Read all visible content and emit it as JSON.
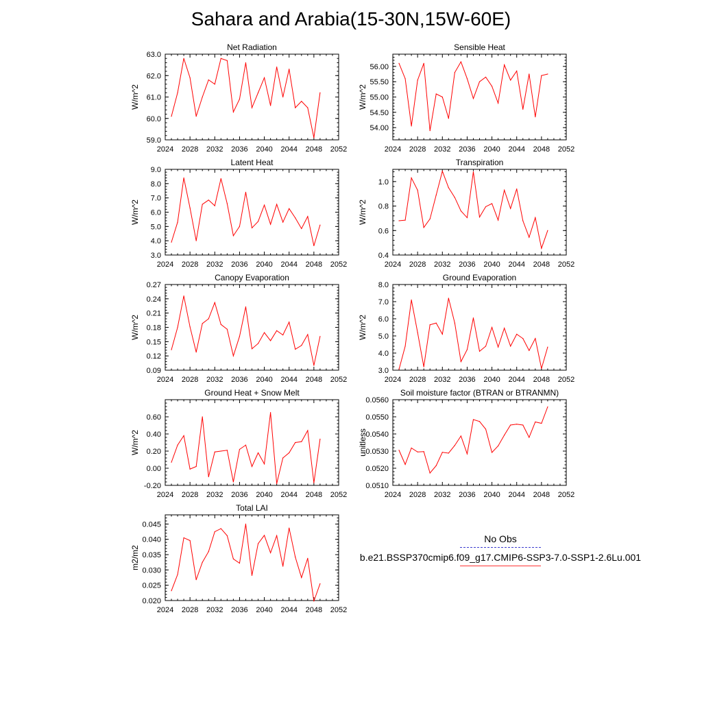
{
  "page_title": "Sahara and Arabia(15-30N,15W-60E)",
  "legend": {
    "obs_label": "No Obs",
    "obs_color": "#3a3acd",
    "model_label": "b.e21.BSSP370cmip6.f09_g17.CMIP6-SSP3-7.0-SSP1-2.6Lu.001",
    "model_color": "#ff0000"
  },
  "chart_data": [
    {
      "type": "line",
      "title": "Net Radiation",
      "ylabel": "W/m^2",
      "xlim": [
        2024,
        2052
      ],
      "xticks": [
        2024,
        2028,
        2032,
        2036,
        2040,
        2044,
        2048,
        2052
      ],
      "ylim": [
        59.0,
        63.0
      ],
      "yticks": [
        "59.0",
        "60.0",
        "61.0",
        "62.0",
        "63.0"
      ],
      "x": [
        2025,
        2026,
        2027,
        2028,
        2029,
        2030,
        2031,
        2032,
        2033,
        2034,
        2035,
        2036,
        2037,
        2038,
        2039,
        2040,
        2041,
        2042,
        2043,
        2044,
        2045,
        2046,
        2047,
        2048,
        2049
      ],
      "series": [
        {
          "values": [
            60.1,
            61.2,
            62.8,
            61.9,
            60.1,
            61.0,
            61.8,
            61.6,
            62.8,
            62.7,
            60.3,
            60.9,
            62.6,
            60.5,
            61.2,
            61.9,
            60.6,
            62.4,
            61.0,
            62.3,
            60.5,
            60.8,
            60.5,
            59.1,
            61.2
          ]
        }
      ]
    },
    {
      "type": "line",
      "title": "Sensible Heat",
      "ylabel": "W/m^2",
      "xlim": [
        2024,
        2052
      ],
      "xticks": [
        2024,
        2028,
        2032,
        2036,
        2040,
        2044,
        2048,
        2052
      ],
      "ylim": [
        53.6,
        56.4
      ],
      "yticks": [
        "54.00",
        "54.50",
        "55.00",
        "55.50",
        "56.00"
      ],
      "x": [
        2025,
        2026,
        2027,
        2028,
        2029,
        2030,
        2031,
        2032,
        2033,
        2034,
        2035,
        2036,
        2037,
        2038,
        2039,
        2040,
        2041,
        2042,
        2043,
        2044,
        2045,
        2046,
        2047,
        2048,
        2049
      ],
      "series": [
        {
          "values": [
            56.1,
            55.6,
            54.05,
            55.55,
            56.1,
            53.9,
            55.1,
            55.0,
            54.3,
            55.8,
            56.15,
            55.6,
            54.95,
            55.5,
            55.65,
            55.35,
            54.8,
            56.05,
            55.55,
            55.85,
            54.6,
            55.75,
            54.35,
            55.7,
            55.75
          ]
        }
      ]
    },
    {
      "type": "line",
      "title": "Latent Heat",
      "ylabel": "W/m^2",
      "xlim": [
        2024,
        2052
      ],
      "xticks": [
        2024,
        2028,
        2032,
        2036,
        2040,
        2044,
        2048,
        2052
      ],
      "ylim": [
        3.0,
        9.0
      ],
      "yticks": [
        "3.0",
        "4.0",
        "5.0",
        "6.0",
        "7.0",
        "8.0",
        "9.0"
      ],
      "x": [
        2025,
        2026,
        2027,
        2028,
        2029,
        2030,
        2031,
        2032,
        2033,
        2034,
        2035,
        2036,
        2037,
        2038,
        2039,
        2040,
        2041,
        2042,
        2043,
        2044,
        2045,
        2046,
        2047,
        2048,
        2049
      ],
      "series": [
        {
          "values": [
            3.9,
            5.3,
            8.4,
            6.3,
            4.0,
            6.55,
            6.85,
            6.45,
            8.35,
            6.6,
            4.35,
            5.0,
            7.4,
            4.9,
            5.35,
            6.5,
            5.15,
            6.55,
            5.3,
            6.25,
            5.6,
            4.85,
            5.7,
            3.65,
            5.1
          ]
        }
      ]
    },
    {
      "type": "line",
      "title": "Transpiration",
      "ylabel": "W/m^2",
      "xlim": [
        2024,
        2052
      ],
      "xticks": [
        2024,
        2028,
        2032,
        2036,
        2040,
        2044,
        2048,
        2052
      ],
      "ylim": [
        0.4,
        1.1
      ],
      "yticks": [
        "0.4",
        "0.6",
        "0.8",
        "1.0"
      ],
      "x": [
        2025,
        2026,
        2027,
        2028,
        2029,
        2030,
        2031,
        2032,
        2033,
        2034,
        2035,
        2036,
        2037,
        2038,
        2039,
        2040,
        2041,
        2042,
        2043,
        2044,
        2045,
        2046,
        2047,
        2048,
        2049
      ],
      "series": [
        {
          "values": [
            0.68,
            0.685,
            1.03,
            0.93,
            0.625,
            0.695,
            0.89,
            1.085,
            0.95,
            0.87,
            0.76,
            0.705,
            1.08,
            0.71,
            0.795,
            0.82,
            0.685,
            0.93,
            0.78,
            0.94,
            0.68,
            0.545,
            0.705,
            0.455,
            0.6
          ]
        }
      ]
    },
    {
      "type": "line",
      "title": "Canopy Evaporation",
      "ylabel": "W/m^2",
      "xlim": [
        2024,
        2052
      ],
      "xticks": [
        2024,
        2028,
        2032,
        2036,
        2040,
        2044,
        2048,
        2052
      ],
      "ylim": [
        0.09,
        0.27
      ],
      "yticks": [
        "0.09",
        "0.12",
        "0.15",
        "0.18",
        "0.21",
        "0.24",
        "0.27"
      ],
      "x": [
        2025,
        2026,
        2027,
        2028,
        2029,
        2030,
        2031,
        2032,
        2033,
        2034,
        2035,
        2036,
        2037,
        2038,
        2039,
        2040,
        2041,
        2042,
        2043,
        2044,
        2045,
        2046,
        2047,
        2048,
        2049
      ],
      "series": [
        {
          "values": [
            0.133,
            0.18,
            0.246,
            0.181,
            0.128,
            0.188,
            0.198,
            0.232,
            0.186,
            0.176,
            0.12,
            0.161,
            0.223,
            0.135,
            0.146,
            0.169,
            0.152,
            0.173,
            0.164,
            0.191,
            0.134,
            0.142,
            0.165,
            0.1,
            0.161
          ]
        }
      ]
    },
    {
      "type": "line",
      "title": "Ground Evaporation",
      "ylabel": "W/m^2",
      "xlim": [
        2024,
        2052
      ],
      "xticks": [
        2024,
        2028,
        2032,
        2036,
        2040,
        2044,
        2048,
        2052
      ],
      "ylim": [
        3.0,
        8.0
      ],
      "yticks": [
        "3.0",
        "4.0",
        "5.0",
        "6.0",
        "7.0",
        "8.0"
      ],
      "x": [
        2025,
        2026,
        2027,
        2028,
        2029,
        2030,
        2031,
        2032,
        2033,
        2034,
        2035,
        2036,
        2037,
        2038,
        2039,
        2040,
        2041,
        2042,
        2043,
        2044,
        2045,
        2046,
        2047,
        2048,
        2049
      ],
      "series": [
        {
          "values": [
            3.05,
            4.4,
            7.1,
            5.2,
            3.2,
            5.65,
            5.75,
            5.1,
            7.2,
            5.75,
            3.5,
            4.2,
            6.05,
            4.1,
            4.4,
            5.5,
            4.35,
            5.45,
            4.4,
            5.1,
            4.85,
            4.15,
            4.85,
            3.1,
            4.35
          ]
        }
      ]
    },
    {
      "type": "line",
      "title": "Ground Heat + Snow Melt",
      "ylabel": "W/m^2",
      "xlim": [
        2024,
        2052
      ],
      "xticks": [
        2024,
        2028,
        2032,
        2036,
        2040,
        2044,
        2048,
        2052
      ],
      "ylim": [
        -0.2,
        0.8
      ],
      "yticks": [
        "-0.20",
        "0.00",
        "0.20",
        "0.40",
        "0.60"
      ],
      "x": [
        2025,
        2026,
        2027,
        2028,
        2029,
        2030,
        2031,
        2032,
        2033,
        2034,
        2035,
        2036,
        2037,
        2038,
        2039,
        2040,
        2041,
        2042,
        2043,
        2044,
        2045,
        2046,
        2047,
        2048,
        2049
      ],
      "series": [
        {
          "values": [
            0.07,
            0.27,
            0.38,
            -0.01,
            0.02,
            0.6,
            -0.1,
            0.19,
            0.2,
            0.21,
            -0.16,
            0.22,
            0.27,
            0.02,
            0.18,
            0.05,
            0.65,
            -0.18,
            0.12,
            0.18,
            0.3,
            0.31,
            0.44,
            -0.17,
            0.34
          ]
        }
      ]
    },
    {
      "type": "line",
      "title": "Soil moisture factor (BTRAN or BTRANMN)",
      "ylabel": "unitless",
      "xlim": [
        2024,
        2052
      ],
      "xticks": [
        2024,
        2028,
        2032,
        2036,
        2040,
        2044,
        2048,
        2052
      ],
      "ylim": [
        0.051,
        0.056
      ],
      "yticks": [
        "0.0510",
        "0.0520",
        "0.0530",
        "0.0540",
        "0.0550",
        "0.0560"
      ],
      "x": [
        2025,
        2026,
        2027,
        2028,
        2029,
        2030,
        2031,
        2032,
        2033,
        2034,
        2035,
        2036,
        2037,
        2038,
        2039,
        2040,
        2041,
        2042,
        2043,
        2044,
        2045,
        2046,
        2047,
        2048,
        2049
      ],
      "series": [
        {
          "values": [
            0.05305,
            0.05222,
            0.05318,
            0.05295,
            0.05297,
            0.05172,
            0.05215,
            0.05293,
            0.05288,
            0.05333,
            0.05388,
            0.05284,
            0.05484,
            0.05473,
            0.05428,
            0.05292,
            0.0533,
            0.05393,
            0.05452,
            0.05457,
            0.05452,
            0.0538,
            0.0547,
            0.05462,
            0.05558
          ]
        }
      ]
    },
    {
      "type": "line",
      "title": "Total LAI",
      "ylabel": "m2/m2",
      "xlim": [
        2024,
        2052
      ],
      "xticks": [
        2024,
        2028,
        2032,
        2036,
        2040,
        2044,
        2048,
        2052
      ],
      "ylim": [
        0.02,
        0.048
      ],
      "yticks": [
        "0.020",
        "0.025",
        "0.030",
        "0.035",
        "0.040",
        "0.045"
      ],
      "x": [
        2025,
        2026,
        2027,
        2028,
        2029,
        2030,
        2031,
        2032,
        2033,
        2034,
        2035,
        2036,
        2037,
        2038,
        2039,
        2040,
        2041,
        2042,
        2043,
        2044,
        2045,
        2046,
        2047,
        2048,
        2049
      ],
      "series": [
        {
          "values": [
            0.0232,
            0.0285,
            0.0405,
            0.0396,
            0.0268,
            0.0325,
            0.036,
            0.0425,
            0.0435,
            0.0412,
            0.0336,
            0.0322,
            0.045,
            0.0282,
            0.0386,
            0.0413,
            0.0356,
            0.0412,
            0.0312,
            0.0437,
            0.0342,
            0.0275,
            0.0338,
            0.0198,
            0.0255
          ]
        }
      ]
    }
  ]
}
